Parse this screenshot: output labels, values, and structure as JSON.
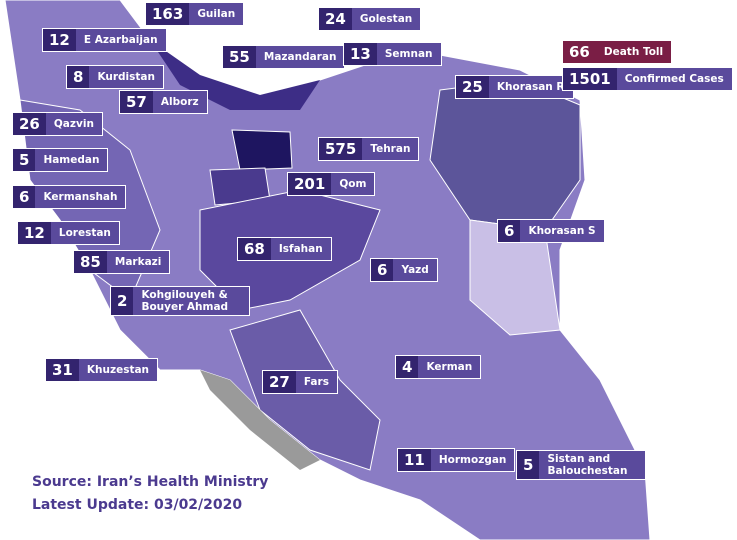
{
  "provinces": [
    {
      "name": "Guilan",
      "cases": 163
    },
    {
      "name": "Golestan",
      "cases": 24
    },
    {
      "name": "E Azarbaijan",
      "cases": 12
    },
    {
      "name": "Kurdistan",
      "cases": 8
    },
    {
      "name": "Mazandaran",
      "cases": 55
    },
    {
      "name": "Semnan",
      "cases": 13
    },
    {
      "name": "Alborz",
      "cases": 57
    },
    {
      "name": "Khorasan R",
      "cases": 25
    },
    {
      "name": "Qazvin",
      "cases": 26
    },
    {
      "name": "Hamedan",
      "cases": 5
    },
    {
      "name": "Tehran",
      "cases": 575
    },
    {
      "name": "Kermanshah",
      "cases": 6
    },
    {
      "name": "Qom",
      "cases": 201
    },
    {
      "name": "Lorestan",
      "cases": 12
    },
    {
      "name": "Khorasan S",
      "cases": 6
    },
    {
      "name": "Isfahan",
      "cases": 68
    },
    {
      "name": "Markazi",
      "cases": 85
    },
    {
      "name": "Yazd",
      "cases": 6
    },
    {
      "name": "Kohgilouyeh & Bouyer Ahmad",
      "cases": 2
    },
    {
      "name": "Khuzestan",
      "cases": 31
    },
    {
      "name": "Fars",
      "cases": 27
    },
    {
      "name": "Kerman",
      "cases": 4
    },
    {
      "name": "Hormozgan",
      "cases": 11
    },
    {
      "name": "Sistan and Balouchestan",
      "cases": 5
    }
  ],
  "legend": [
    {
      "value": 66,
      "label": "Death Toll"
    },
    {
      "value": 1501,
      "label": "Confirmed Cases"
    }
  ],
  "source": "Source: Iran’s Health Ministry",
  "update": "Latest Update: 03/02/2020"
}
